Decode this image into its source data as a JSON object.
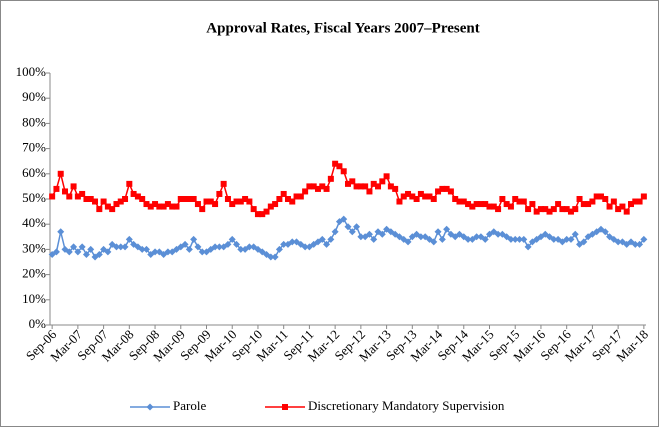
{
  "chart_data": {
    "type": "line",
    "title": "Approval Rates, Fiscal Years 2007–Present",
    "categories": [
      "Sep-06",
      null,
      null,
      null,
      null,
      null,
      "Mar-07",
      null,
      null,
      null,
      null,
      null,
      "Sep-07",
      null,
      null,
      null,
      null,
      null,
      "Mar-08",
      null,
      null,
      null,
      null,
      null,
      "Sep-08",
      null,
      null,
      null,
      null,
      null,
      "Mar-09",
      null,
      null,
      null,
      null,
      null,
      "Sep-09",
      null,
      null,
      null,
      null,
      null,
      "Mar-10",
      null,
      null,
      null,
      null,
      null,
      "Sep-10",
      null,
      null,
      null,
      null,
      null,
      "Mar-11",
      null,
      null,
      null,
      null,
      null,
      "Sep-11",
      null,
      null,
      null,
      null,
      null,
      "Mar-12",
      null,
      null,
      null,
      null,
      null,
      "Sep-12",
      null,
      null,
      null,
      null,
      null,
      "Mar-13",
      null,
      null,
      null,
      null,
      null,
      "Sep-13",
      null,
      null,
      null,
      null,
      null,
      "Mar-14",
      null,
      null,
      null,
      null,
      null,
      "Sep-14",
      null,
      null,
      null,
      null,
      null,
      "Mar-15",
      null,
      null,
      null,
      null,
      null,
      "Sep-15",
      null,
      null,
      null,
      null,
      null,
      "Mar-16",
      null,
      null,
      null,
      null,
      null,
      "Sep-16",
      null,
      null,
      null,
      null,
      null,
      "Mar-17",
      null,
      null,
      null,
      null,
      null,
      "Sep-17",
      null,
      null,
      null,
      null,
      null,
      "Mar-18"
    ],
    "series": [
      {
        "name": "Parole",
        "color": "#5b8fd6",
        "marker": "diamond",
        "values": [
          28,
          29,
          37,
          30,
          29,
          31,
          29,
          31,
          28,
          30,
          27,
          28,
          30,
          29,
          32,
          31,
          31,
          31,
          34,
          32,
          31,
          30,
          30,
          28,
          29,
          29,
          28,
          29,
          29,
          30,
          31,
          32,
          30,
          34,
          31,
          29,
          29,
          30,
          31,
          31,
          31,
          32,
          34,
          32,
          30,
          30,
          31,
          31,
          30,
          29,
          28,
          27,
          27,
          30,
          32,
          32,
          33,
          33,
          32,
          31,
          31,
          32,
          33,
          34,
          32,
          34,
          37,
          41,
          42,
          39,
          37,
          39,
          35,
          35,
          36,
          34,
          37,
          36,
          38,
          37,
          36,
          35,
          34,
          33,
          35,
          36,
          35,
          35,
          34,
          33,
          37,
          34,
          38,
          36,
          35,
          36,
          35,
          34,
          34,
          35,
          35,
          34,
          36,
          37,
          36,
          36,
          35,
          34,
          34,
          34,
          34,
          31,
          33,
          34,
          35,
          36,
          35,
          34,
          34,
          33,
          34,
          34,
          36,
          32,
          33,
          35,
          36,
          37,
          38,
          37,
          35,
          34,
          33,
          33,
          32,
          33,
          32,
          32,
          34
        ]
      },
      {
        "name": "Discretionary Mandatory Supervision",
        "color": "#ff0000",
        "marker": "square",
        "values": [
          51,
          54,
          60,
          53,
          51,
          55,
          51,
          52,
          50,
          50,
          49,
          46,
          49,
          47,
          46,
          48,
          49,
          50,
          56,
          52,
          51,
          50,
          48,
          47,
          48,
          47,
          47,
          48,
          47,
          47,
          50,
          50,
          50,
          50,
          48,
          46,
          49,
          49,
          48,
          52,
          56,
          50,
          48,
          49,
          49,
          50,
          49,
          46,
          44,
          44,
          45,
          47,
          48,
          50,
          52,
          50,
          49,
          51,
          51,
          53,
          55,
          55,
          54,
          55,
          54,
          58,
          64,
          63,
          61,
          56,
          57,
          55,
          55,
          55,
          53,
          56,
          55,
          57,
          59,
          55,
          54,
          49,
          51,
          52,
          51,
          50,
          52,
          51,
          51,
          50,
          53,
          54,
          54,
          53,
          50,
          49,
          49,
          48,
          47,
          48,
          48,
          48,
          47,
          47,
          46,
          50,
          48,
          47,
          50,
          49,
          49,
          46,
          48,
          45,
          46,
          46,
          45,
          46,
          48,
          46,
          46,
          45,
          46,
          50,
          48,
          48,
          49,
          51,
          51,
          50,
          47,
          49,
          46,
          47,
          45,
          48,
          49,
          49,
          51
        ]
      }
    ],
    "ylim": [
      0,
      100
    ],
    "yticks": [
      {
        "value": 0,
        "label": "0%"
      },
      {
        "value": 10,
        "label": "10%"
      },
      {
        "value": 20,
        "label": "20%"
      },
      {
        "value": 30,
        "label": "30%"
      },
      {
        "value": 40,
        "label": "40%"
      },
      {
        "value": 50,
        "label": "50%"
      },
      {
        "value": 60,
        "label": "60%"
      },
      {
        "value": 70,
        "label": "70%"
      },
      {
        "value": 80,
        "label": "80%"
      },
      {
        "value": 90,
        "label": "90%"
      },
      {
        "value": 100,
        "label": "100%"
      }
    ],
    "grid": false,
    "legend": "bottom"
  }
}
